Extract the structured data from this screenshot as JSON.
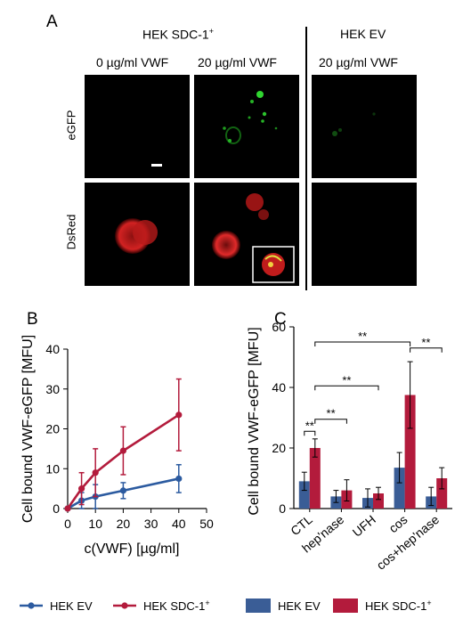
{
  "panelA": {
    "letter": "A",
    "group_sdc": "HEK SDC-1",
    "group_sdc_sup": "+",
    "group_ev": "HEK EV",
    "cond_0": "0 µg/ml VWF",
    "cond_20a": "20 µg/ml VWF",
    "cond_20b": "20 µg/ml VWF",
    "row_egfp": "eGFP",
    "row_dsred": "DsRed"
  },
  "panelB": {
    "letter": "B"
  },
  "panelC": {
    "letter": "C"
  },
  "chart_data": [
    {
      "type": "line",
      "panel": "B",
      "xlabel": "c(VWF) [µg/ml]",
      "ylabel": "Cell bound VWF-eGFP [MFU]",
      "xlim": [
        0,
        50
      ],
      "ylim": [
        0,
        40
      ],
      "xticks": [
        0,
        10,
        20,
        30,
        40,
        50
      ],
      "yticks": [
        0,
        10,
        20,
        30,
        40
      ],
      "grid": false,
      "series": [
        {
          "name": "HEK EV",
          "color": "#2c5ba0",
          "x": [
            0,
            5,
            10,
            20,
            40
          ],
          "y": [
            0,
            2,
            3,
            4.5,
            7.5
          ],
          "err": [
            0,
            2,
            3,
            2,
            3.5
          ]
        },
        {
          "name": "HEK SDC-1+",
          "color": "#b31b3c",
          "x": [
            0,
            5,
            10,
            20,
            40
          ],
          "y": [
            0,
            5,
            9,
            14.5,
            23.5
          ],
          "err": [
            0,
            4,
            6,
            6,
            9
          ]
        }
      ]
    },
    {
      "type": "bar",
      "panel": "C",
      "ylabel": "Cell bound VWF-eGFP [MFU]",
      "ylim": [
        0,
        60
      ],
      "yticks": [
        0,
        20,
        40,
        60
      ],
      "categories": [
        "CTL",
        "hep'nase",
        "UFH",
        "cos",
        "cos+hep'nase"
      ],
      "series": [
        {
          "name": "HEK EV",
          "color": "#3a5d96",
          "values": [
            9,
            4,
            3.5,
            13.5,
            4
          ],
          "err": [
            3,
            2,
            3,
            5,
            3
          ]
        },
        {
          "name": "HEK SDC-1+",
          "color": "#b31b3c",
          "values": [
            20,
            6,
            5,
            37.5,
            10
          ],
          "err": [
            3,
            3.5,
            2,
            11,
            3.5
          ]
        }
      ],
      "significance": [
        {
          "label": "**"
        },
        {
          "label": "**"
        },
        {
          "label": "**"
        },
        {
          "label": "**"
        },
        {
          "label": "**"
        }
      ]
    }
  ],
  "legend": {
    "left": [
      {
        "name": "HEK EV",
        "color": "#2c5ba0"
      },
      {
        "name": "HEK SDC-1",
        "sup": "+",
        "color": "#b31b3c"
      }
    ],
    "right": [
      {
        "name": "HEK EV",
        "color": "#3a5d96"
      },
      {
        "name": "HEK SDC-1",
        "sup": "+",
        "color": "#b31b3c"
      }
    ]
  }
}
